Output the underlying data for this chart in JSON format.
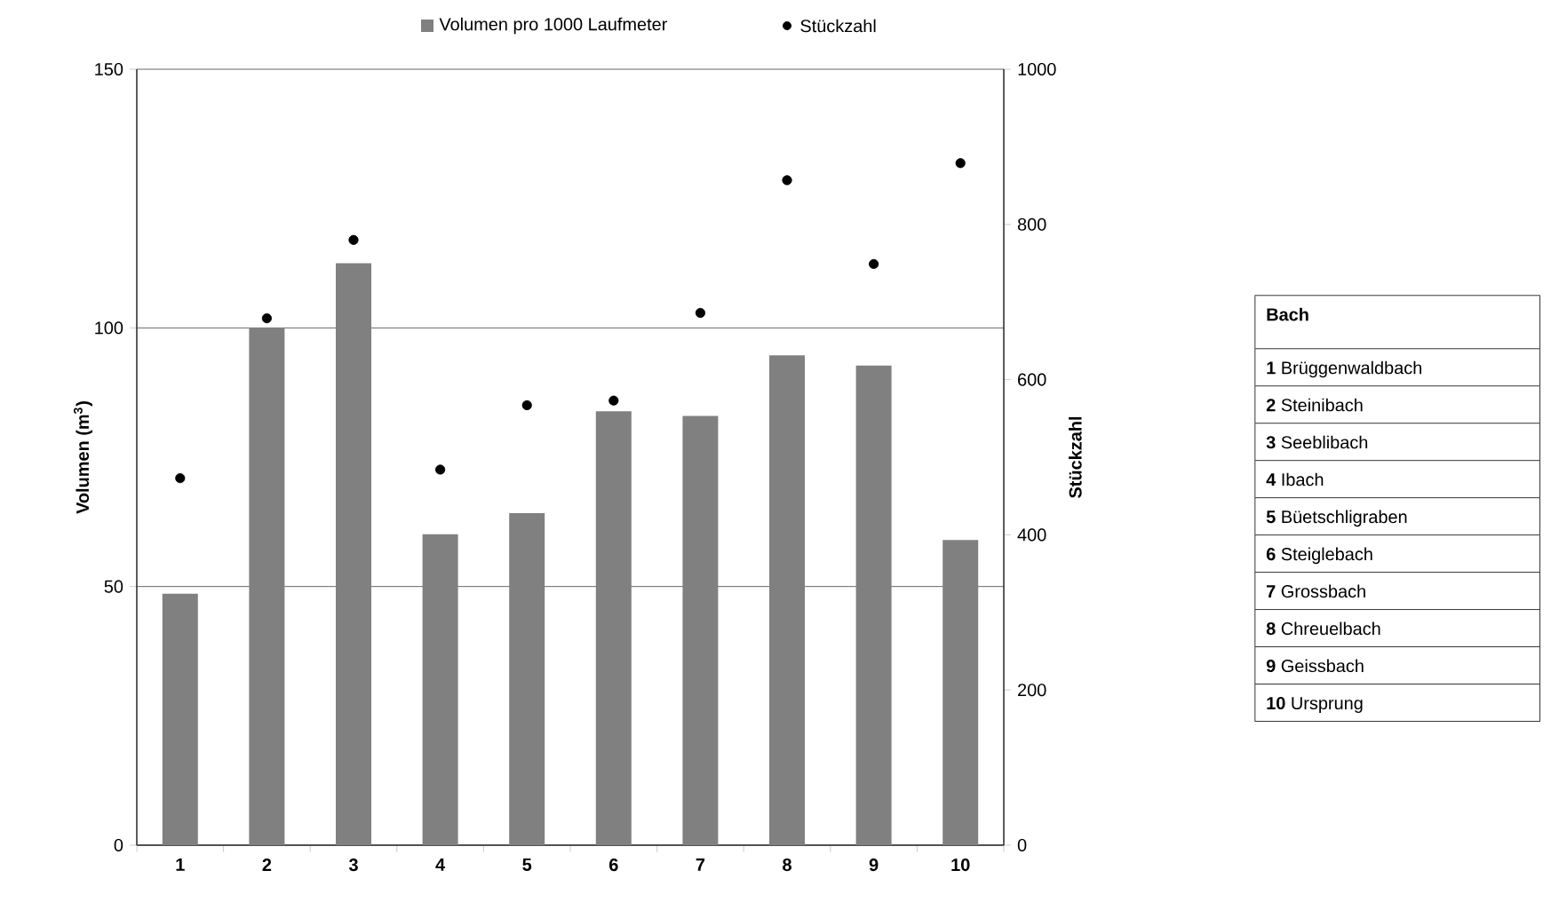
{
  "chart_data": {
    "type": "bar",
    "ylabel": "Volumen (m$^{3}$)",
    "y2label": "Stückzahl",
    "categories": [
      "1",
      "2",
      "3",
      "4",
      "5",
      "6",
      "7",
      "8",
      "9",
      "10"
    ],
    "series": [
      {
        "name": "Volumen pro 1000 Laufmeter",
        "color": "#808080",
        "values": [
          48.6,
          100,
          112.5,
          60.1,
          64.2,
          83.9,
          83.0,
          94.7,
          92.7,
          59.0
        ]
      },
      {
        "name": "Stückzahl",
        "type": "scatter",
        "axis": "y2",
        "color": "#000000",
        "values": [
          473,
          679,
          780,
          484,
          567,
          573,
          686,
          857,
          749,
          879
        ]
      }
    ],
    "ylim": [
      0,
      150
    ],
    "yticks": [
      0,
      50,
      100,
      150
    ],
    "y2lim": [
      0,
      1000
    ],
    "y2ticks": [
      0,
      200,
      400,
      600,
      800,
      1000
    ],
    "grid": "y",
    "legend": "top",
    "marker": "circle",
    "annotations": [
      "Bach",
      "**1** Brüggenwaldbach",
      "**2** Steinibach",
      "**3** Seeblibach",
      "**4** Ibach",
      "**5** Büetschligraben",
      "**6** Steiglebach",
      "**7** Grossbach",
      "**8** Chreuelbach",
      "**9** Geissbach",
      "**10** Ursprung"
    ]
  }
}
